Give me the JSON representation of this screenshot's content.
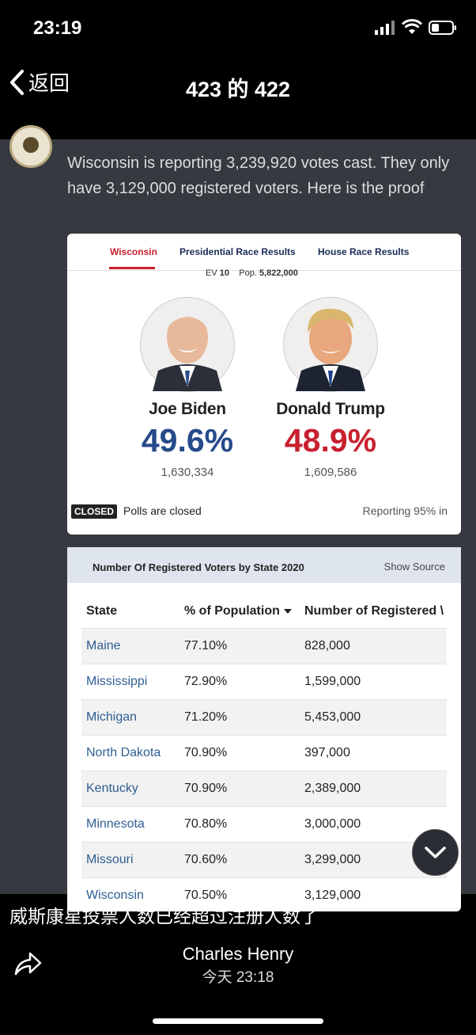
{
  "status_bar": {
    "time": "23:19"
  },
  "nav": {
    "back_label": "返回",
    "title": "423 的 422"
  },
  "post": {
    "text": "Wisconsin is reporting 3,239,920 votes cast. They only have 3,129,000 registered voters. Here is the proof"
  },
  "results_card": {
    "tabs": [
      "Wisconsin",
      "Presidential Race Results",
      "House Race Results"
    ],
    "ev_label": "EV",
    "ev_value": "10",
    "pop_label": "Pop.",
    "pop_value": "5,822,000",
    "candidates": [
      {
        "name": "Joe Biden",
        "percent": "49.6%",
        "votes": "1,630,334",
        "color": "#264a8a"
      },
      {
        "name": "Donald Trump",
        "percent": "48.9%",
        "votes": "1,609,586",
        "color": "#c8202f"
      }
    ],
    "closed_badge": "CLOSED",
    "polls_text": "Polls are closed",
    "reporting_text": "Reporting 95% in"
  },
  "voters_card": {
    "title": "Number Of Registered Voters by State 2020",
    "show_source": "Show Source",
    "headers": [
      "State",
      "% of Population",
      "Number of Registered \\"
    ],
    "rows": [
      [
        "Maine",
        "77.10%",
        "828,000"
      ],
      [
        "Mississippi",
        "72.90%",
        "1,599,000"
      ],
      [
        "Michigan",
        "71.20%",
        "5,453,000"
      ],
      [
        "North Dakota",
        "70.90%",
        "397,000"
      ],
      [
        "Kentucky",
        "70.90%",
        "2,389,000"
      ],
      [
        "Minnesota",
        "70.80%",
        "3,000,000"
      ],
      [
        "Missouri",
        "70.60%",
        "3,299,000"
      ],
      [
        "Wisconsin",
        "70.50%",
        "3,129,000"
      ]
    ]
  },
  "caption": "威斯康星投票人数已经超过注册人数了",
  "author": "Charles Henry",
  "timestamp": "今天 23:18"
}
